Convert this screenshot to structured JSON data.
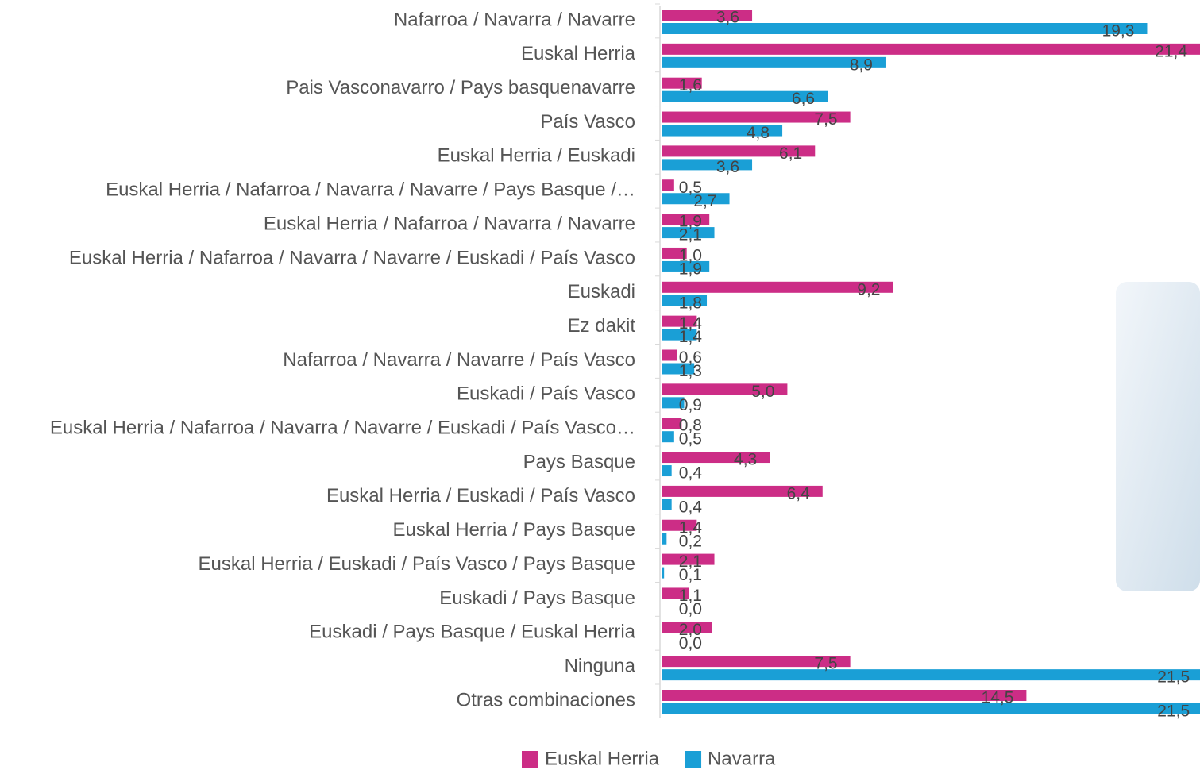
{
  "chart_data": {
    "type": "bar",
    "orientation": "horizontal",
    "categories": [
      "Nafarroa / Navarra / Navarre",
      "Euskal Herria",
      "Pais Vasconavarro / Pays basquenavarre",
      "País Vasco",
      "Euskal Herria / Euskadi",
      "Euskal Herria / Nafarroa / Navarra / Navarre / Pays Basque /…",
      "Euskal Herria / Nafarroa / Navarra / Navarre",
      "Euskal Herria / Nafarroa / Navarra / Navarre / Euskadi / País Vasco",
      "Euskadi",
      "Ez dakit",
      "Nafarroa / Navarra / Navarre / País Vasco",
      "Euskadi / País Vasco",
      "Euskal Herria / Nafarroa / Navarra / Navarre / Euskadi / País Vasco…",
      "Pays Basque",
      "Euskal Herria / Euskadi / País Vasco",
      "Euskal Herria / Pays Basque",
      "Euskal Herria / Euskadi / País Vasco / Pays Basque",
      "Euskadi / Pays Basque",
      "Euskadi / Pays Basque / Euskal Herria",
      "Ninguna",
      "Otras combinaciones"
    ],
    "series": [
      {
        "name": "Euskal Herria",
        "color": "#cc2d86",
        "values": [
          3.6,
          21.4,
          1.6,
          7.5,
          6.1,
          0.5,
          1.9,
          1.0,
          9.2,
          1.4,
          0.6,
          5.0,
          0.8,
          4.3,
          6.4,
          1.4,
          2.1,
          1.1,
          2.0,
          7.5,
          14.5
        ],
        "value_labels": [
          "3,6",
          "21,4",
          "1,6",
          "7,5",
          "6,1",
          "0,5",
          "1,9",
          "1,0",
          "9,2",
          "1,4",
          "0,6",
          "5,0",
          "0,8",
          "4,3",
          "6,4",
          "1,4",
          "2,1",
          "1,1",
          "2,0",
          "7,5",
          "14,5"
        ]
      },
      {
        "name": "Navarra",
        "color": "#1a9fd6",
        "values": [
          19.3,
          8.9,
          6.6,
          4.8,
          3.6,
          2.7,
          2.1,
          1.9,
          1.8,
          1.4,
          1.3,
          0.9,
          0.5,
          0.4,
          0.4,
          0.2,
          0.1,
          0.0,
          0.0,
          21.5,
          21.5
        ],
        "value_labels": [
          "19,3",
          "8,9",
          "6,6",
          "4,8",
          "3,6",
          "2,7",
          "2,1",
          "1,9",
          "1,8",
          "1,4",
          "1,3",
          "0,9",
          "0,5",
          "0,4",
          "0,4",
          "0,2",
          "0,1",
          "0,0",
          "0,0",
          "21,5",
          "21,5"
        ]
      }
    ],
    "xlim": [
      0,
      21.4
    ],
    "legend": "bottom"
  }
}
